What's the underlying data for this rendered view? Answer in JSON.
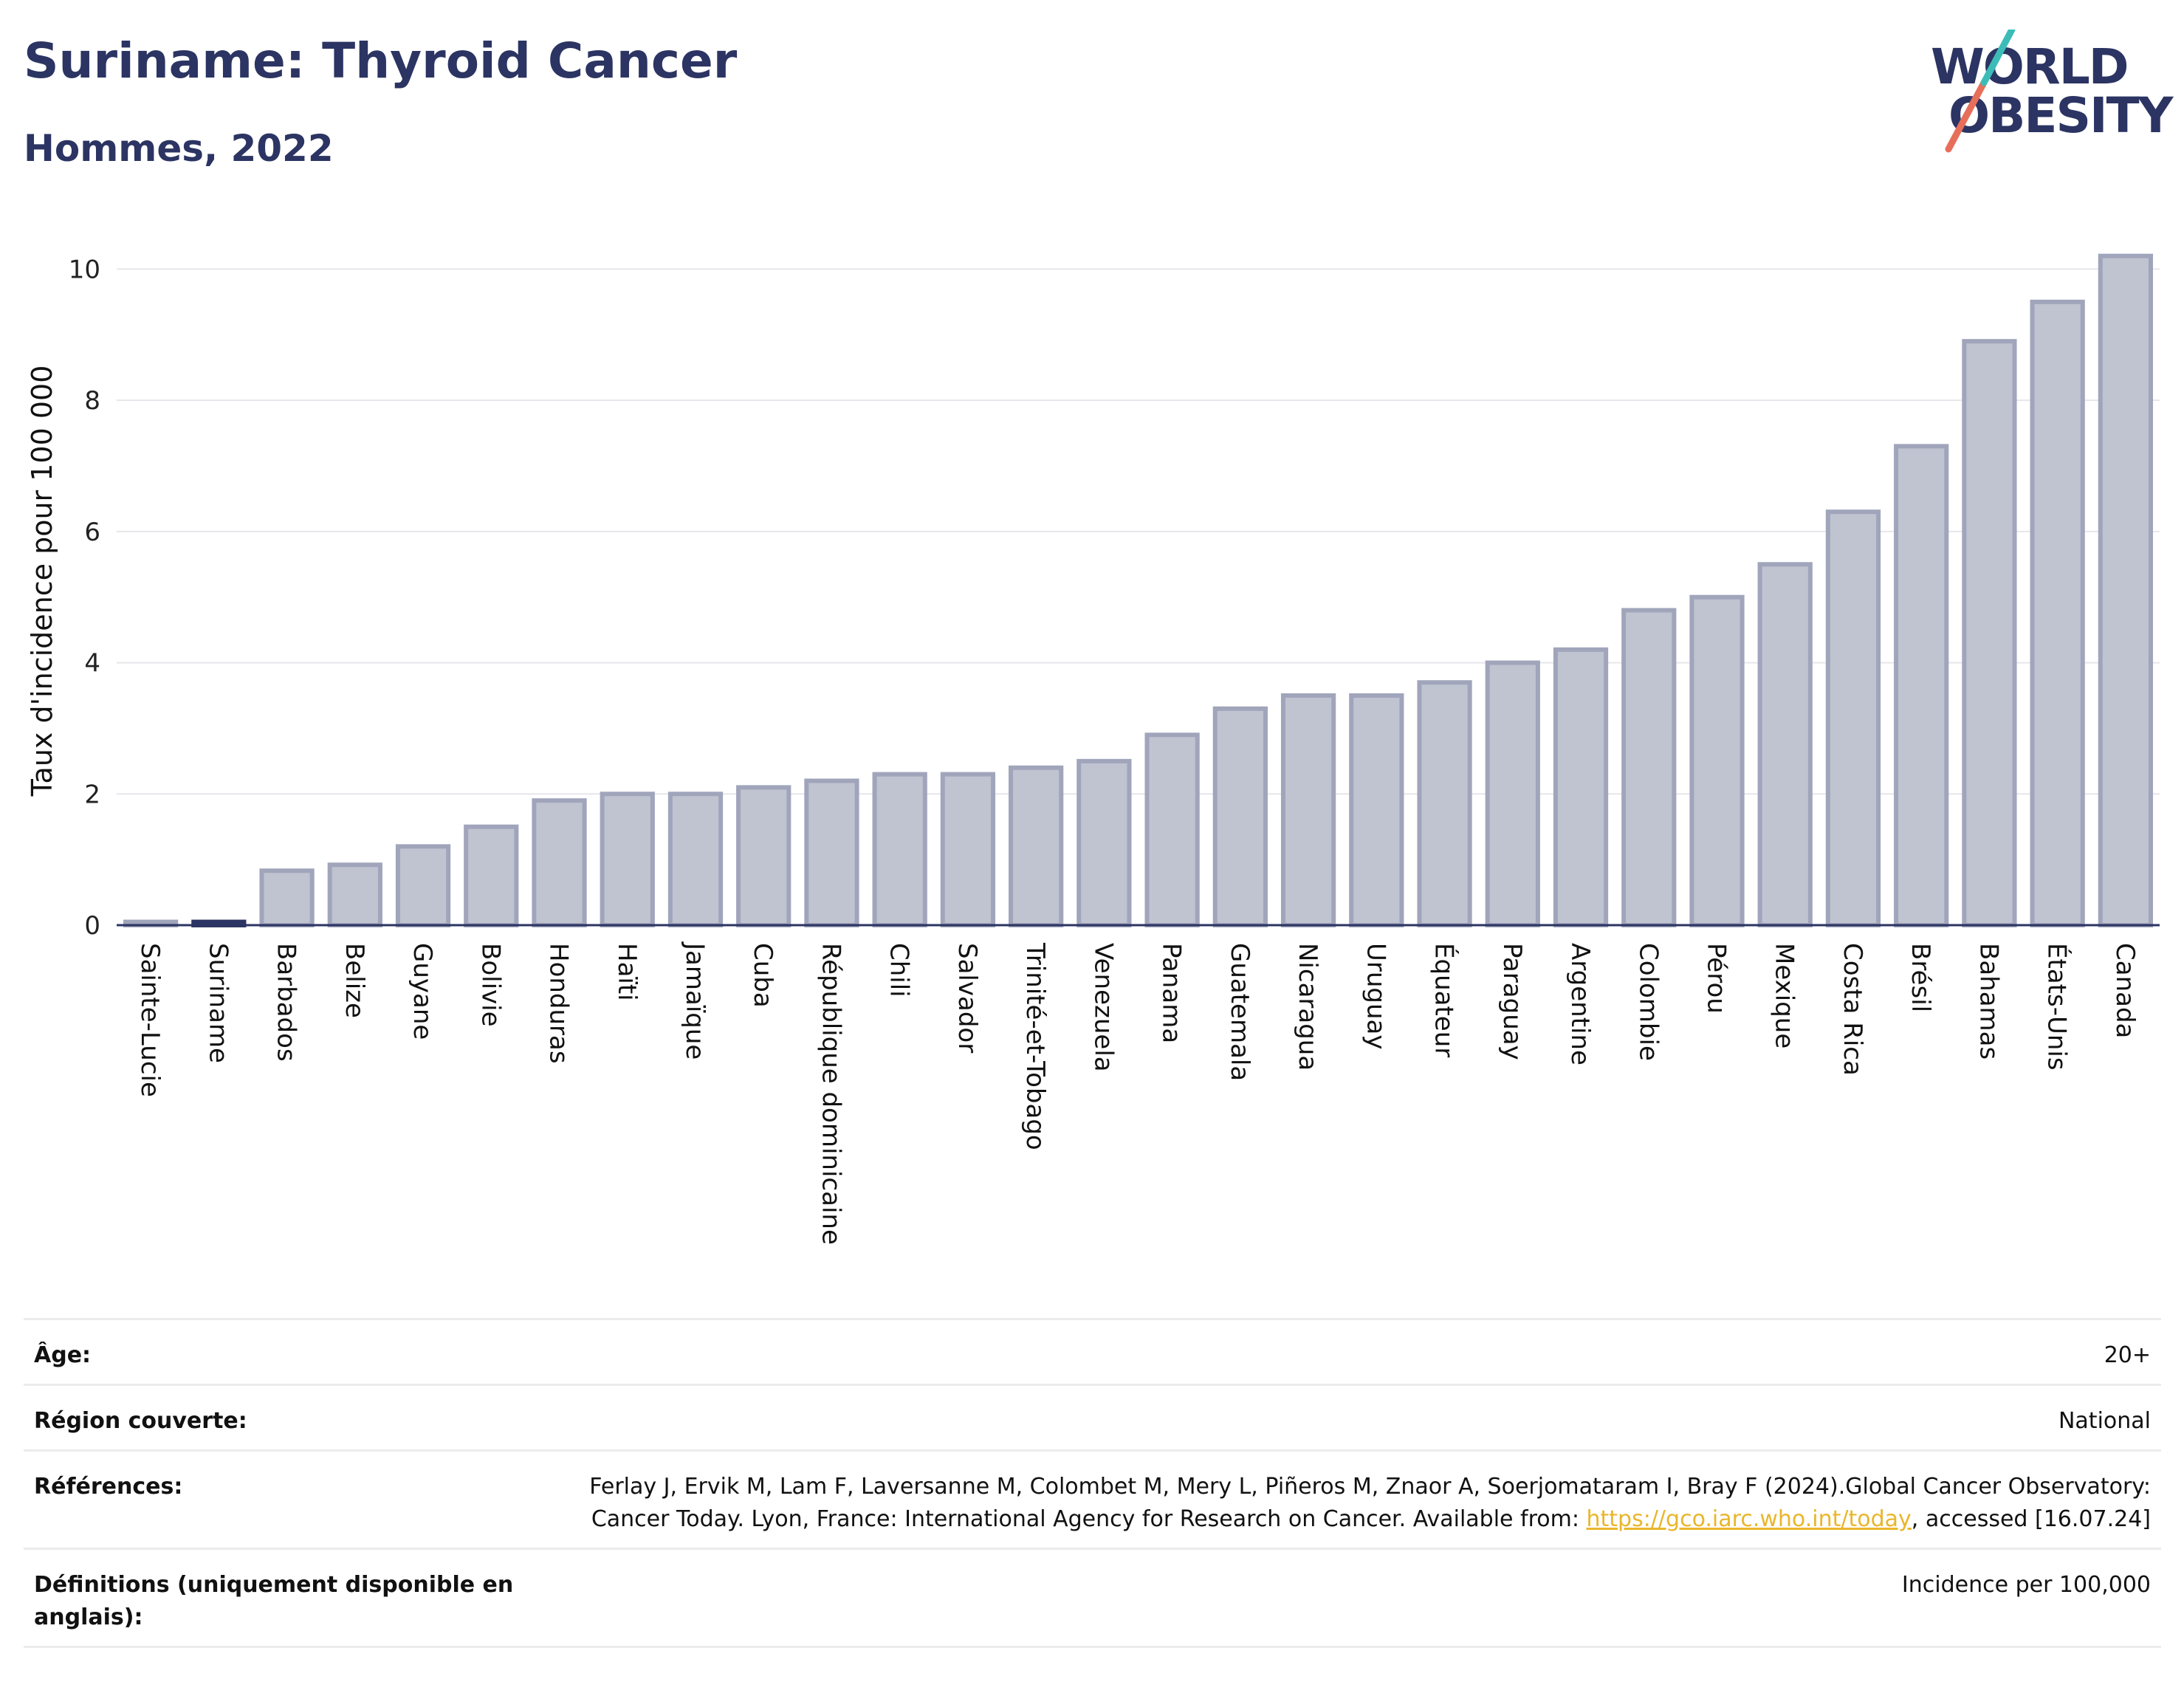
{
  "header": {
    "title": "Suriname: Thyroid Cancer",
    "subtitle": "Hommes, 2022"
  },
  "logo": {
    "line1": "WORLD",
    "line2": "OBESITY",
    "colors": [
      "#2b3462",
      "#e76f5a",
      "#3cbcb7"
    ]
  },
  "colors": {
    "bar_fill": "#c0c3d0",
    "bar_stroke": "#a0a5bb",
    "highlight": "#2b3462",
    "text": "#2b3462"
  },
  "chart_data": {
    "type": "bar",
    "title": "Suriname: Thyroid Cancer",
    "subtitle": "Hommes, 2022",
    "ylabel": "Taux d'incidence pour 100 000",
    "ylim": [
      0,
      10.5
    ],
    "yticks": [
      0,
      2,
      4,
      6,
      8,
      10
    ],
    "grid": true,
    "highlight": "Suriname",
    "categories": [
      "Sainte-Lucie",
      "Suriname",
      "Barbados",
      "Belize",
      "Guyane",
      "Bolivie",
      "Honduras",
      "Haïti",
      "Jamaïque",
      "Cuba",
      "République dominicaine",
      "Chili",
      "Salvador",
      "Trinité-et-Tobago",
      "Venezuela",
      "Panama",
      "Guatemala",
      "Nicaragua",
      "Uruguay",
      "Équateur",
      "Paraguay",
      "Argentine",
      "Colombie",
      "Pérou",
      "Mexique",
      "Costa Rica",
      "Brésil",
      "Bahamas",
      "États-Unis",
      "Canada"
    ],
    "values": [
      0.05,
      0.05,
      0.83,
      0.92,
      1.2,
      1.5,
      1.9,
      2.0,
      2.0,
      2.1,
      2.2,
      2.3,
      2.3,
      2.4,
      2.5,
      2.9,
      3.3,
      3.5,
      3.5,
      3.7,
      4.0,
      4.2,
      4.8,
      5.0,
      5.5,
      6.3,
      7.3,
      8.9,
      9.5,
      10.2
    ]
  },
  "footer": {
    "rows": [
      {
        "label": "Âge:",
        "value": "20+"
      },
      {
        "label": "Région couverte:",
        "value": "National"
      },
      {
        "label": "Références:",
        "value_pre": "Ferlay J, Ervik M, Lam F, Laversanne M, Colombet M, Mery L, Piñeros M, Znaor A, Soerjomataram I, Bray F (2024).Global Cancer Observatory: Cancer Today. Lyon, France: International Agency for Research on Cancer. Available from: ",
        "link": "https://gco.iarc.who.int/today",
        "value_post": ", accessed [16.07.24]"
      },
      {
        "label": "Définitions (uniquement disponible en anglais):",
        "value": "Incidence per 100,000"
      }
    ]
  }
}
